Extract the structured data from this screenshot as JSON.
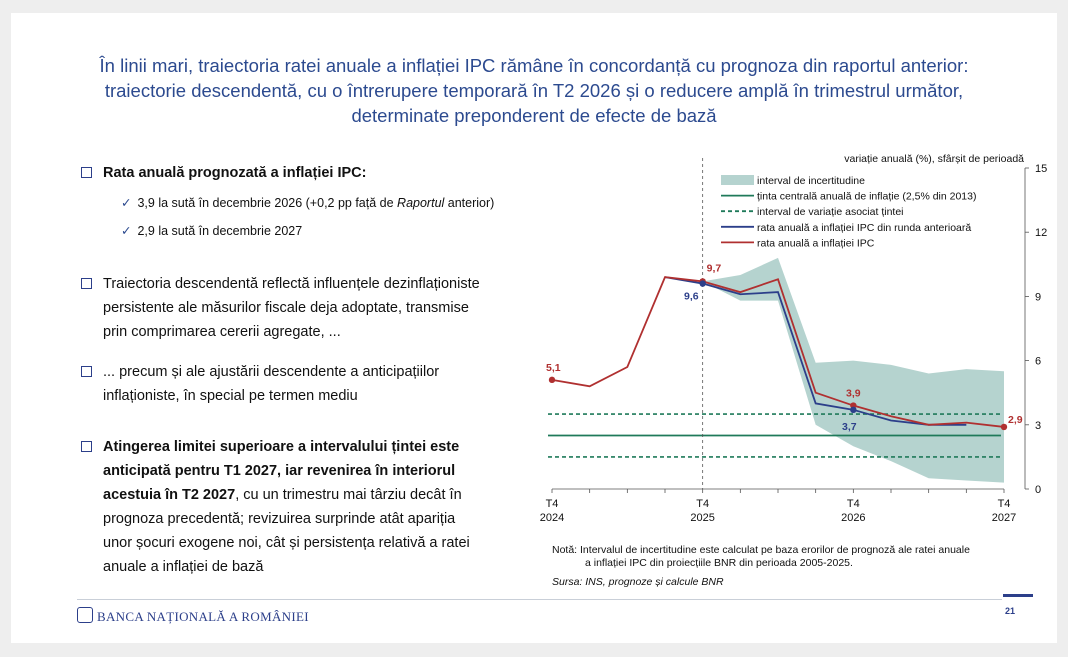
{
  "title": {
    "line1": "În linii mari, traiectoria ratei anuale a inflației IPC rămâne în concordanță cu prognoza din raportul anterior:",
    "line2": "traiectorie descendentă, cu o întrerupere temporară în T2 2026 și o reducere amplă în trimestrul următor,",
    "line3": "determinate preponderent de efecte de bază"
  },
  "bullets": {
    "b1": "Rata anuală prognozată a inflației IPC:",
    "b1_sub1_a": "3,9 la sută în decembrie 2026 (+0,2 pp față de ",
    "b1_sub1_em": "Raportul",
    "b1_sub1_b": " anterior)",
    "b1_sub2": "2,9 la sută în decembrie 2027",
    "b2_l1": "Traiectoria descendentă reflectă influențele dezinflaționiste",
    "b2_l2": "persistente ale măsurilor fiscale deja adoptate, transmise",
    "b2_l3": "prin comprimarea cererii agregate, ...",
    "b3_l1": "... precum și ale ajustării descendente a anticipațiilor",
    "b3_l2": "inflaționiste, în special pe termen mediu",
    "b4_l1": "Atingerea limitei superioare a intervalului țintei este",
    "b4_l2": "anticipată pentru T1 2027, iar revenirea în interiorul",
    "b4_l3_bold": "acestuia în T2 2027",
    "b4_l3_rest": ", cu un trimestru mai târziu decât în",
    "b4_l4": "prognoza precedentă; revizuirea surprinde atât apariția",
    "b4_l5": "unor șocuri exogene noi, cât și persistența relativă a ratei",
    "b4_l6": "anuale a inflației de bază"
  },
  "chart_data": {
    "type": "line",
    "ylabel": "variație anuală (%), sfârșit de perioadă",
    "ylim": [
      0,
      15
    ],
    "yticks": [
      "0",
      "3",
      "6",
      "9",
      "12",
      "15"
    ],
    "x": [
      "T4 2024",
      "T1 2025",
      "T2 2025",
      "T3 2025",
      "T4 2025",
      "T1 2026",
      "T2 2026",
      "T3 2026",
      "T4 2026",
      "T1 2027",
      "T2 2027",
      "T3 2027",
      "T4 2027"
    ],
    "xtick_labels": [
      {
        "index": 0,
        "top": "T4",
        "bottom": "2024"
      },
      {
        "index": 4,
        "top": "T4",
        "bottom": "2025"
      },
      {
        "index": 8,
        "top": "T4",
        "bottom": "2026"
      },
      {
        "index": 12,
        "top": "T4",
        "bottom": "2027"
      }
    ],
    "band_start": 4,
    "band_upper": [
      9.7,
      10.0,
      10.8,
      5.9,
      6.0,
      5.8,
      5.4,
      5.6,
      5.5
    ],
    "band_lower": [
      9.7,
      8.8,
      8.8,
      3.0,
      2.0,
      1.3,
      0.5,
      0.4,
      0.3
    ],
    "target_central": 2.5,
    "target_band": [
      1.5,
      3.5
    ],
    "series": [
      {
        "name": "rata anuală a inflației IPC din runda anterioară",
        "color": "#2c3f8a",
        "values": [
          null,
          null,
          null,
          9.9,
          9.6,
          9.1,
          9.2,
          4.0,
          3.7,
          3.2,
          3.0,
          3.0,
          null
        ]
      },
      {
        "name": "rata anuală a inflației IPC",
        "color": "#b03030",
        "values": [
          5.1,
          4.8,
          5.7,
          9.9,
          9.7,
          9.2,
          9.8,
          4.5,
          3.9,
          3.4,
          3.0,
          3.1,
          2.9
        ]
      }
    ],
    "legend": {
      "band": "interval de incertitudine",
      "central": "ținta centrală anuală de inflație (2,5% din 2013)",
      "range": "interval de variație asociat țintei",
      "prev": "rata anuală a inflației IPC din runda anterioară",
      "cur": "rata anuală a inflației IPC"
    },
    "annotations": {
      "start": "5,1",
      "cur_2025": "9,7",
      "prev_2025": "9,6",
      "cur_2026": "3,9",
      "prev_2026": "3,7",
      "cur_2027": "2,9"
    },
    "colors": {
      "band": "#b5d3cf",
      "target": "#1f7a5a",
      "prev": "#2c3f8a",
      "cur": "#b03030"
    }
  },
  "notes": {
    "nota_l1": "Notă: Intervalul de incertitudine este calculat pe baza erorilor de prognoză ale ratei anuale",
    "nota_l2": "a inflației IPC din proiecțiile BNR din perioada 2005-2025.",
    "sursa": "Sursa: INS, prognoze și calcule BNR"
  },
  "footer": {
    "logo": "BANCA NAȚIONALĂ A ROMÂNIEI",
    "page": "21"
  }
}
